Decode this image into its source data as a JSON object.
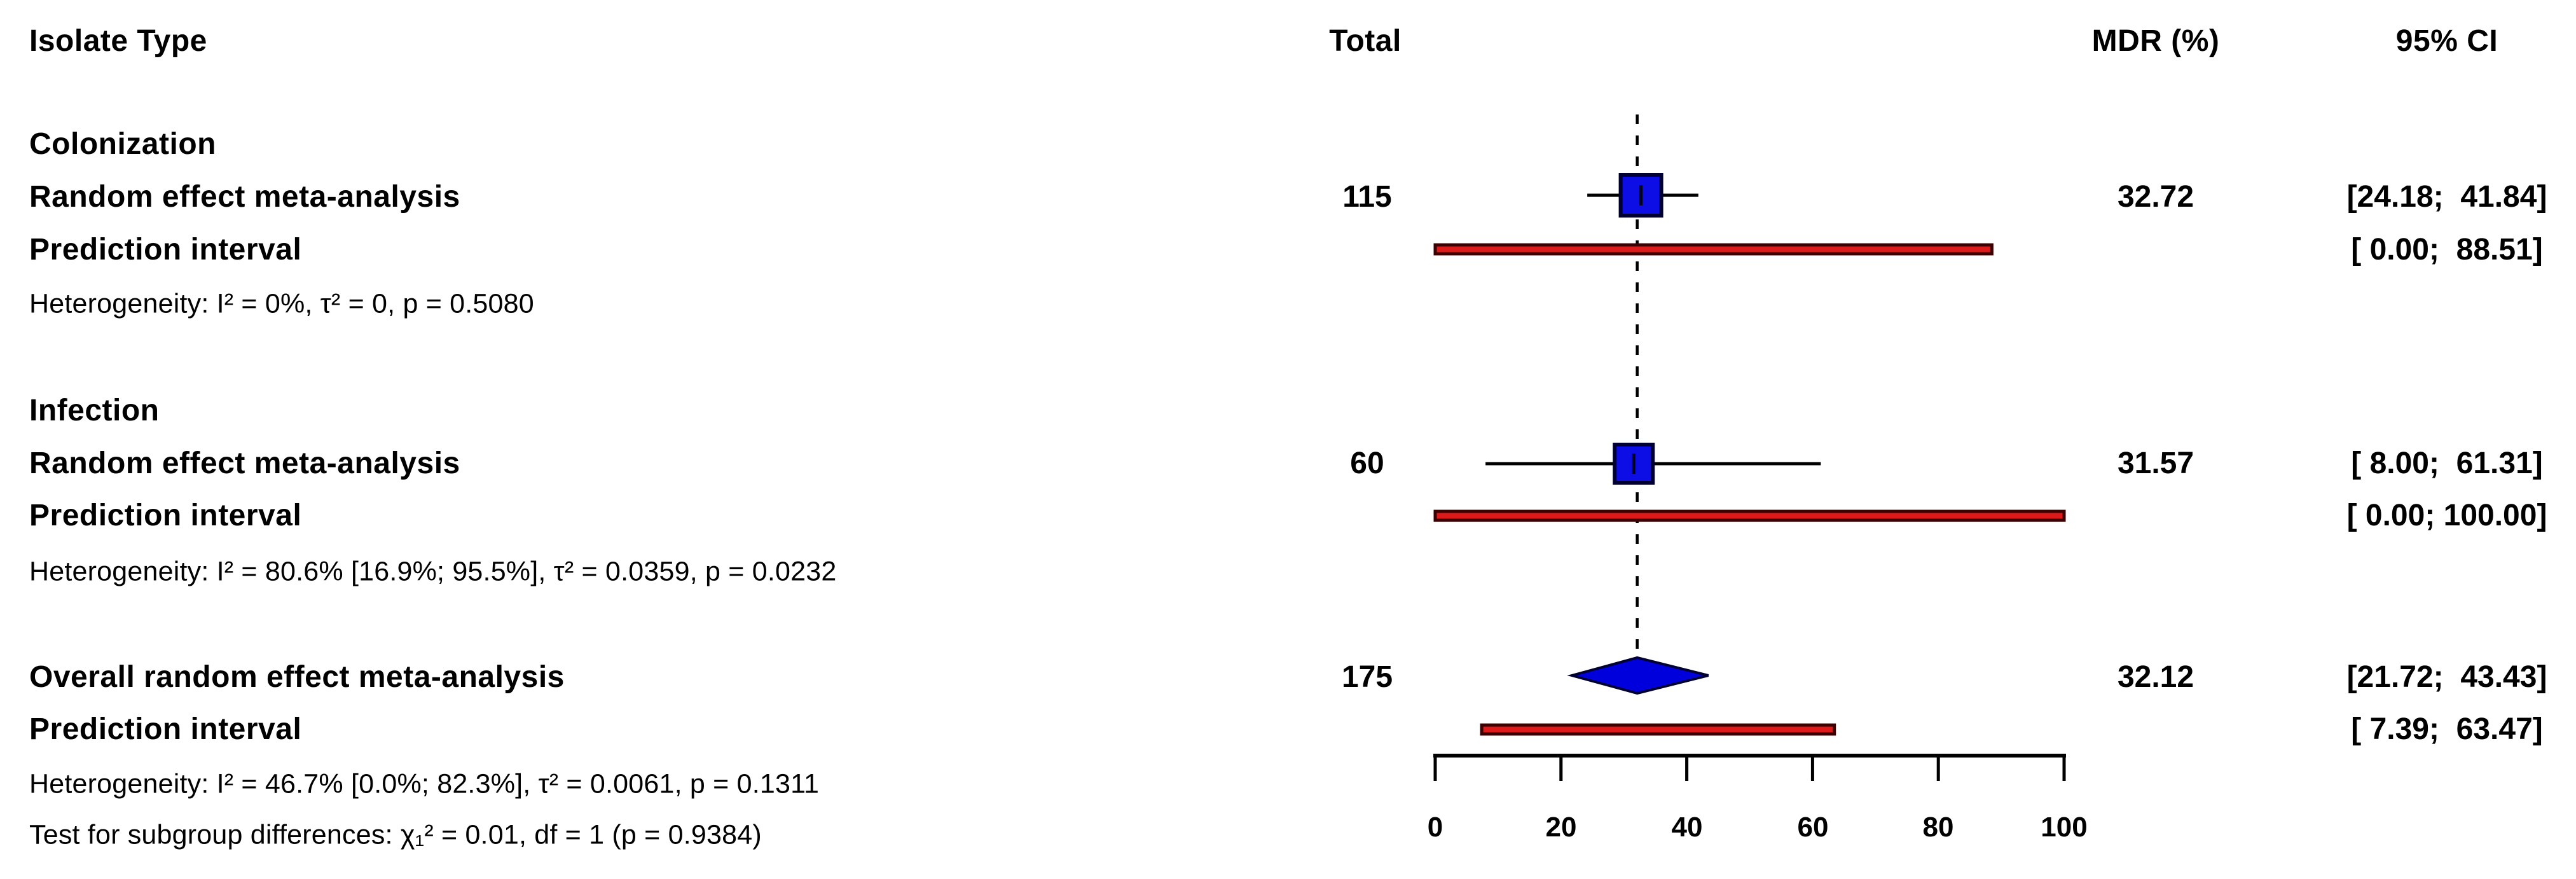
{
  "header": {
    "isolate_type": "Isolate Type",
    "total": "Total",
    "mdr": "MDR (%)",
    "ci": "95% CI"
  },
  "groups": [
    {
      "label": "Colonization",
      "re_label": "Random effect meta-analysis",
      "pi_label": "Prediction interval",
      "heterogeneity": "Heterogeneity: I² = 0%, τ² = 0, p = 0.5080",
      "total": "115",
      "mdr": "32.72",
      "re_ci": "[24.18;  41.84]",
      "pi_ci": "[ 0.00;  88.51]"
    },
    {
      "label": "Infection",
      "re_label": "Random effect meta-analysis",
      "pi_label": "Prediction interval",
      "heterogeneity": "Heterogeneity: I² = 80.6% [16.9%; 95.5%], τ² = 0.0359, p = 0.0232",
      "total": "60",
      "mdr": "31.57",
      "re_ci": "[ 8.00;  61.31]",
      "pi_ci": "[ 0.00; 100.00]"
    }
  ],
  "overall": {
    "label": "Overall random effect meta-analysis",
    "pi_label": "Prediction interval",
    "heterogeneity": "Heterogeneity: I² = 46.7% [0.0%; 82.3%], τ² = 0.0061, p = 0.1311",
    "subgroup_test": "Test for subgroup differences: χ₁² = 0.01, df = 1 (p = 0.9384)",
    "total": "175",
    "mdr": "32.12",
    "re_ci": "[21.72;  43.43]",
    "pi_ci": "[ 7.39;  63.47]"
  },
  "chart_data": {
    "type": "forest",
    "title": "",
    "xlabel": "MDR (%)",
    "axis": {
      "min": 0,
      "max": 100,
      "ticks": [
        0,
        20,
        40,
        60,
        80,
        100
      ],
      "tick_labels": [
        "0",
        "20",
        "40",
        "60",
        "80",
        "100"
      ]
    },
    "reference_line": 32.12,
    "rows": [
      {
        "id": "colonization-re",
        "group": "Colonization",
        "kind": "square",
        "estimate": 32.72,
        "ci": [
          24.18,
          41.84
        ],
        "total": 115
      },
      {
        "id": "colonization-pi",
        "group": "Colonization",
        "kind": "bar",
        "ci": [
          0.0,
          88.51
        ]
      },
      {
        "id": "infection-re",
        "group": "Infection",
        "kind": "square",
        "estimate": 31.57,
        "ci": [
          8.0,
          61.31
        ],
        "total": 60
      },
      {
        "id": "infection-pi",
        "group": "Infection",
        "kind": "bar",
        "ci": [
          0.0,
          100.0
        ]
      },
      {
        "id": "overall-re",
        "group": "Overall",
        "kind": "diamond",
        "estimate": 32.12,
        "ci": [
          21.72,
          43.43
        ],
        "total": 175
      },
      {
        "id": "overall-pi",
        "group": "Overall",
        "kind": "bar",
        "ci": [
          7.39,
          63.47
        ]
      }
    ],
    "colors": {
      "square_fill": "#0d0de6",
      "square_border": "#000033",
      "diamond_fill": "#0000dd",
      "diamond_border": "#000033",
      "bar_fill": "#dd1a1a",
      "bar_border": "#3d0000",
      "line": "#000000"
    }
  }
}
